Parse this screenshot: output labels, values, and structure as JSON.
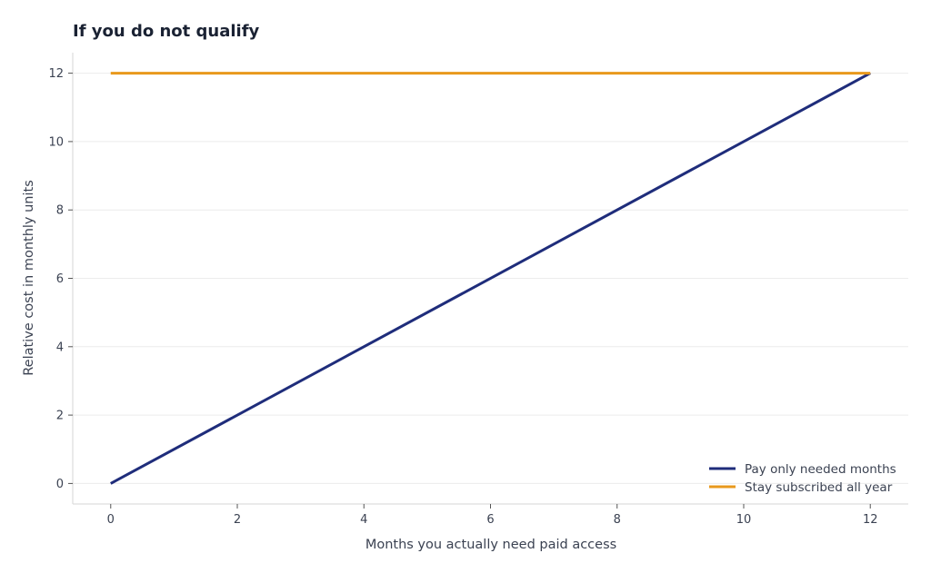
{
  "chart_data": {
    "type": "line",
    "title": "If you do not qualify",
    "xlabel": "Months you actually need paid access",
    "ylabel": "Relative cost in monthly units",
    "xlim": [
      -0.6,
      12.6
    ],
    "ylim": [
      -0.6,
      12.6
    ],
    "xticks": [
      0,
      2,
      4,
      6,
      8,
      10,
      12
    ],
    "yticks": [
      0,
      2,
      4,
      6,
      8,
      10,
      12
    ],
    "grid": "horizontal",
    "legend_position": "bottom-right",
    "series": [
      {
        "name": "Pay only needed months",
        "color": "#1f2d7b",
        "x": [
          0,
          12
        ],
        "y": [
          0,
          12
        ]
      },
      {
        "name": "Stay subscribed all year",
        "color": "#e8991c",
        "x": [
          0,
          12
        ],
        "y": [
          12,
          12
        ]
      }
    ]
  }
}
